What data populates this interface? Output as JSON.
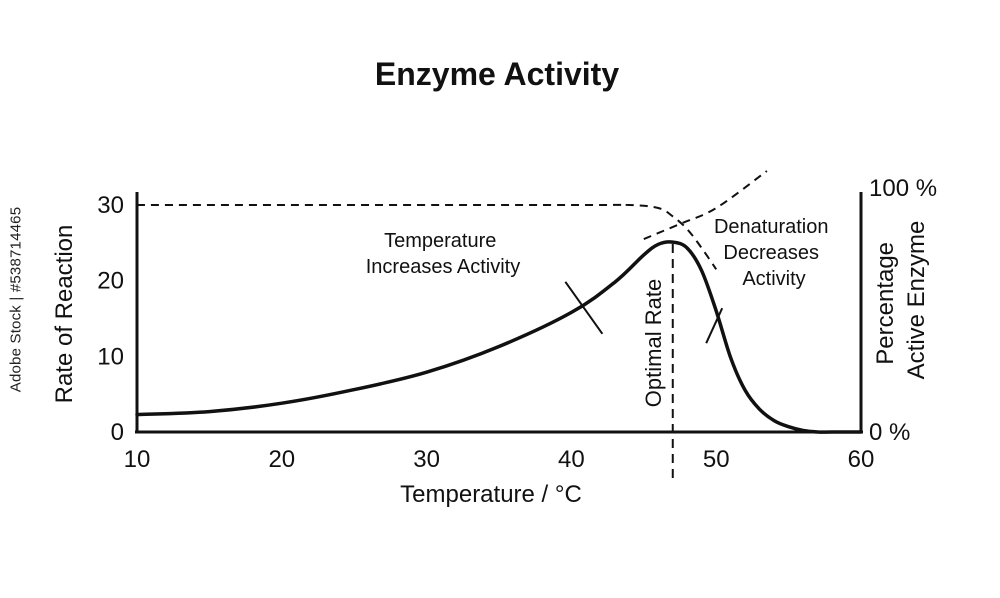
{
  "chart_data": {
    "type": "line",
    "title": "Enzyme Activity",
    "xlabel": "Temperature / °C",
    "ylabel": "Rate of Reaction",
    "y2label": [
      "Percentage",
      "Active Enzyme"
    ],
    "xlim": [
      10,
      60
    ],
    "ylim": [
      0,
      30
    ],
    "xticks": [
      10,
      20,
      30,
      40,
      50,
      60
    ],
    "yticks": [
      0,
      10,
      20,
      30
    ],
    "y2ticks": [
      "0 %",
      "100 %"
    ],
    "grid": false,
    "series": [
      {
        "style": "solid",
        "x": [
          10,
          15,
          20,
          25,
          30,
          35,
          40,
          43,
          45,
          46,
          47,
          48,
          49,
          50,
          51,
          52,
          53,
          54,
          55,
          56,
          57,
          58,
          60
        ],
        "y": [
          2.3,
          2.7,
          3.8,
          5.6,
          7.9,
          11.3,
          15.8,
          19.8,
          23.4,
          24.8,
          25.1,
          24.3,
          21.3,
          16.0,
          9.8,
          5.5,
          3.0,
          1.5,
          0.7,
          0.2,
          0.0,
          0.0,
          0.0
        ]
      },
      {
        "style": "dashed",
        "x": [
          10,
          40,
          44,
          46,
          47,
          48,
          49,
          50
        ],
        "y": [
          30,
          30,
          30,
          29.6,
          28.5,
          26.8,
          24.3,
          21.5
        ]
      },
      {
        "style": "dashed",
        "x": [
          45,
          47.5,
          50,
          53.5
        ],
        "y": [
          25.5,
          27.5,
          29.6,
          34.5
        ]
      }
    ],
    "reference_lines": [
      {
        "orientation": "vertical",
        "x": 47,
        "label": "Optimal Rate"
      }
    ],
    "annotations": [
      {
        "text_lines": [
          "Temperature",
          "Increases Activity"
        ],
        "points_to": {
          "x": 42,
          "y": 13.5
        }
      },
      {
        "text_lines": [
          "Denaturation",
          "Decreases",
          "Activity"
        ],
        "points_to": {
          "x": 50,
          "y": 12
        }
      }
    ]
  },
  "watermark": "Adobe Stock | #538714465"
}
